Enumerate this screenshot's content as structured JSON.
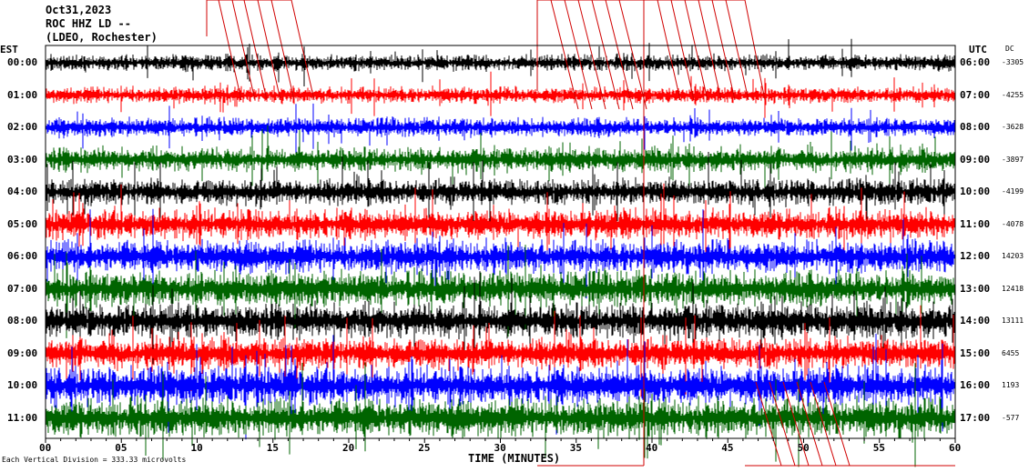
{
  "header": {
    "date": "Oct31,2023",
    "station": "ROC HHZ LD --",
    "network": "(LDEO, Rochester)"
  },
  "left_axis_title": "EST",
  "right_axis_title": "UTC",
  "dc_title": "DC",
  "footer": {
    "scale_note": "Each Vertical Division = 333.33 microvolts"
  },
  "colors": {
    "black": "#000000",
    "red": "#ff0000",
    "blue": "#0000ff",
    "green": "#006400",
    "marker": "#d00000"
  },
  "chart_data": {
    "type": "line",
    "title": "Oct31,2023",
    "xlabel": "TIME (MINUTES)",
    "ylabel": "",
    "xlim": [
      0,
      60
    ],
    "x_ticks": [
      "00",
      "05",
      "10",
      "15",
      "20",
      "25",
      "30",
      "35",
      "40",
      "45",
      "50",
      "55",
      "60"
    ],
    "rows": [
      {
        "est": "00:00",
        "utc": "06:00",
        "dc": "-3305",
        "color": "black",
        "activity": 0.6
      },
      {
        "est": "01:00",
        "utc": "07:00",
        "dc": "-4255",
        "color": "red",
        "activity": 0.6
      },
      {
        "est": "02:00",
        "utc": "08:00",
        "dc": "-3628",
        "color": "blue",
        "activity": 0.7
      },
      {
        "est": "03:00",
        "utc": "09:00",
        "dc": "-3897",
        "color": "green",
        "activity": 0.9
      },
      {
        "est": "04:00",
        "utc": "10:00",
        "dc": "-4199",
        "color": "black",
        "activity": 1.0
      },
      {
        "est": "05:00",
        "utc": "11:00",
        "dc": "-4078",
        "color": "red",
        "activity": 1.1
      },
      {
        "est": "06:00",
        "utc": "12:00",
        "dc": "14203",
        "color": "blue",
        "activity": 1.2
      },
      {
        "est": "07:00",
        "utc": "13:00",
        "dc": "12418",
        "color": "green",
        "activity": 1.3
      },
      {
        "est": "08:00",
        "utc": "14:00",
        "dc": "13111",
        "color": "black",
        "activity": 1.3
      },
      {
        "est": "09:00",
        "utc": "15:00",
        "dc": "6455",
        "color": "red",
        "activity": 1.2
      },
      {
        "est": "10:00",
        "utc": "16:00",
        "dc": "1193",
        "color": "blue",
        "activity": 1.4
      },
      {
        "est": "11:00",
        "utc": "17:00",
        "dc": "-577",
        "color": "green",
        "activity": 1.4
      }
    ],
    "grid": false,
    "legend": "none"
  }
}
